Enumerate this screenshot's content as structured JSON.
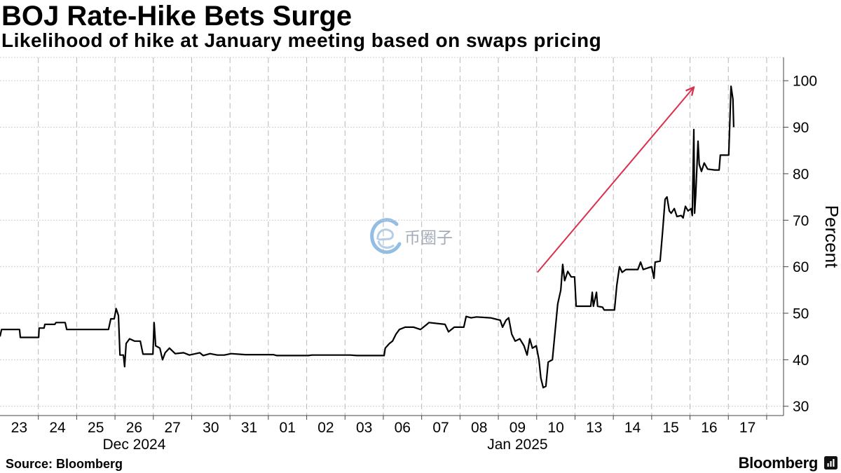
{
  "chart_data": {
    "type": "line",
    "title": "BOJ Rate-Hike Bets Surge",
    "subtitle": "Likelihood of hike at January meeting based on swaps pricing",
    "ylabel": "Percent",
    "categories": [
      "23",
      "24",
      "25",
      "26",
      "27",
      "30",
      "31",
      "01",
      "02",
      "03",
      "06",
      "07",
      "08",
      "09",
      "10",
      "13",
      "14",
      "15",
      "16",
      "17"
    ],
    "category_groups": [
      {
        "label": "Dec 2024",
        "at": 3
      },
      {
        "label": "Jan 2025",
        "at": 13
      }
    ],
    "y_ticks": [
      30,
      40,
      50,
      60,
      70,
      80,
      90,
      100
    ],
    "ylim": [
      28,
      105
    ],
    "xlim": [
      0,
      20.44
    ],
    "grid": true,
    "series": [
      {
        "x": [
          0.0,
          0.04,
          0.51,
          0.53,
          1.01,
          1.02,
          1.15,
          1.17,
          1.43,
          1.46,
          1.7,
          1.74,
          2.83,
          2.89,
          2.98,
          3.03,
          3.09,
          3.13,
          3.22,
          3.25,
          3.29,
          3.38,
          3.51,
          3.66,
          3.73,
          3.99,
          4.02,
          4.06,
          4.17,
          4.24,
          4.31,
          4.42,
          4.57,
          4.79,
          4.94,
          5.21,
          5.3,
          5.48,
          5.67,
          5.85,
          6.03,
          6.4,
          7.13,
          7.22,
          8.04,
          8.14,
          9.14,
          9.32,
          10.02,
          10.05,
          10.16,
          10.24,
          10.33,
          10.42,
          10.57,
          10.79,
          10.97,
          11.12,
          11.19,
          11.61,
          11.7,
          11.85,
          12.1,
          12.16,
          12.29,
          12.43,
          12.8,
          13.05,
          13.11,
          13.2,
          13.27,
          13.35,
          13.44,
          13.56,
          13.67,
          13.75,
          13.82,
          13.89,
          13.99,
          14.06,
          14.11,
          14.17,
          14.24,
          14.3,
          14.41,
          14.48,
          14.55,
          14.63,
          14.68,
          14.73,
          14.81,
          14.9,
          14.99,
          15.03,
          15.41,
          15.45,
          15.48,
          15.56,
          15.59,
          15.72,
          15.76,
          16.03,
          16.09,
          16.16,
          16.23,
          16.33,
          16.64,
          16.71,
          16.78,
          17.0,
          17.06,
          17.09,
          17.22,
          17.29,
          17.35,
          17.4,
          17.46,
          17.51,
          17.59,
          17.66,
          17.77,
          17.82,
          17.88,
          17.95,
          18.03,
          18.06,
          18.1,
          18.12,
          18.15,
          18.21,
          18.24,
          18.3,
          18.37,
          18.46,
          18.65,
          18.76,
          18.79,
          19.01,
          19.07,
          19.12,
          19.14
        ],
        "y": [
          45.0,
          46.5,
          46.5,
          44.8,
          44.8,
          46.8,
          46.8,
          47.6,
          47.6,
          48.0,
          48.0,
          46.5,
          46.5,
          48.8,
          48.8,
          51.0,
          49.5,
          41.0,
          41.0,
          38.5,
          43.5,
          44.5,
          44.0,
          44.0,
          41.2,
          41.2,
          48.0,
          43.0,
          42.5,
          40.0,
          41.5,
          42.5,
          41.3,
          41.5,
          41.0,
          41.5,
          40.9,
          41.3,
          41.0,
          41.0,
          41.3,
          41.1,
          41.1,
          40.9,
          40.9,
          41.0,
          41.0,
          40.9,
          40.9,
          42.5,
          43.5,
          44.0,
          45.5,
          46.5,
          47.0,
          47.0,
          46.5,
          47.5,
          48.0,
          47.6,
          46.0,
          47.0,
          47.0,
          49.3,
          49.0,
          49.2,
          49.0,
          48.5,
          47.0,
          48.5,
          49.0,
          45.5,
          44.0,
          44.5,
          43.0,
          41.0,
          44.5,
          42.5,
          43.0,
          40.0,
          36.0,
          34.0,
          34.3,
          39.5,
          40.0,
          46.0,
          52.0,
          55.0,
          60.5,
          57.0,
          59.0,
          57.8,
          57.8,
          51.5,
          51.5,
          54.5,
          51.5,
          54.5,
          51.5,
          51.3,
          50.7,
          50.7,
          56.0,
          60.0,
          58.8,
          59.4,
          59.4,
          61.0,
          59.4,
          60.0,
          57.5,
          61.0,
          61.2,
          68.0,
          74.5,
          75.0,
          72.0,
          71.5,
          72.5,
          70.8,
          71.0,
          70.5,
          73.0,
          72.0,
          72.5,
          71.0,
          89.5,
          71.5,
          75.5,
          87.0,
          82.0,
          80.5,
          82.3,
          81.0,
          80.8,
          80.8,
          84.0,
          84.0,
          98.8,
          96.0,
          90.0
        ]
      }
    ],
    "annotations": [
      {
        "type": "arrow",
        "from": [
          14.02,
          58.8
        ],
        "to": [
          18.1,
          98.6
        ]
      }
    ]
  },
  "footer": {
    "source": "Source: Bloomberg",
    "brand": "Bloomberg",
    "brand_icon": "bloomberg-terminal-icon"
  },
  "watermark": {
    "text": "币圈子",
    "icon": "e-circle-logo-icon"
  },
  "colors": {
    "line": "#000000",
    "arrow": "#dc2f4c",
    "grid": "#cfcfcf",
    "grid_day": "#b8b8b8",
    "axis": "#444444",
    "watermark": "#a3adb9"
  }
}
